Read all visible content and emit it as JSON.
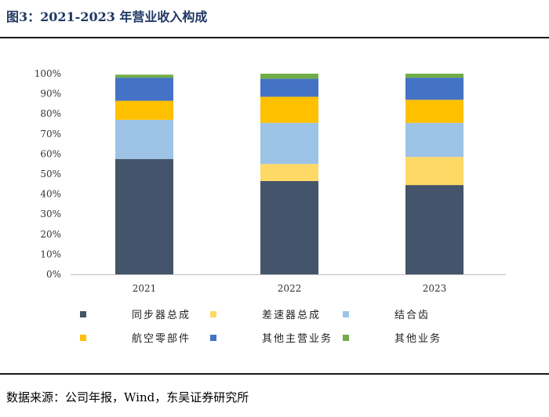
{
  "header": {
    "title": "图3：2021-2023 年营业收入构成"
  },
  "footer": {
    "source": "数据来源：公司年报，Wind，东吴证券研究所"
  },
  "chart_data": {
    "type": "bar",
    "stacked": true,
    "title": "",
    "xlabel": "",
    "ylabel": "",
    "ylim": [
      0,
      100
    ],
    "y_ticks": [
      "0%",
      "10%",
      "20%",
      "30%",
      "40%",
      "50%",
      "60%",
      "70%",
      "80%",
      "90%",
      "100%"
    ],
    "grid": false,
    "legend_placement": "bottom",
    "categories": [
      "2021",
      "2022",
      "2023"
    ],
    "series": [
      {
        "name": "同步器总成",
        "color": "#44546a",
        "values": [
          57.5,
          46.5,
          44.5
        ]
      },
      {
        "name": "差速器总成",
        "color": "#ffd966",
        "values": [
          0,
          8.5,
          14
        ]
      },
      {
        "name": "结合齿",
        "color": "#9dc3e6",
        "values": [
          19.5,
          20.5,
          17
        ]
      },
      {
        "name": "航空零部件",
        "color": "#ffc000",
        "values": [
          9.5,
          13,
          11.5
        ]
      },
      {
        "name": "其他主营业务",
        "color": "#4472c4",
        "values": [
          11.5,
          9,
          11
        ]
      },
      {
        "name": "其他业务",
        "color": "#70ad47",
        "values": [
          1.5,
          2.5,
          2
        ]
      }
    ]
  }
}
